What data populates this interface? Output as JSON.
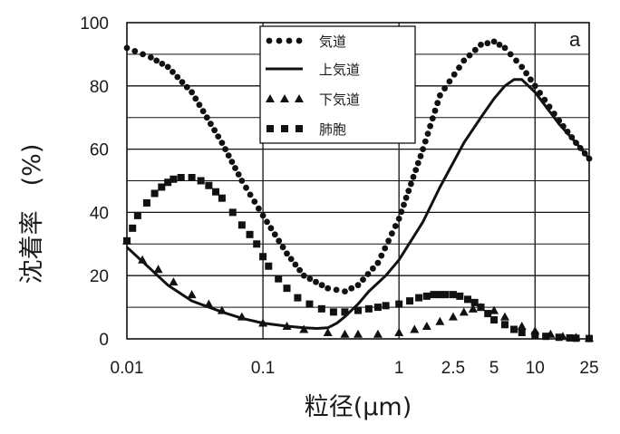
{
  "chart_data": {
    "type": "line",
    "panel_label": "a",
    "xlabel": "粒径(μm)",
    "ylabel": "沈着率　(%)",
    "x_scale": "log",
    "xlim": [
      0.01,
      25
    ],
    "ylim": [
      0,
      100
    ],
    "x_ticks": [
      {
        "value": 0.01,
        "label": "0.01"
      },
      {
        "value": 0.1,
        "label": "0.1"
      },
      {
        "value": 1,
        "label": "1"
      },
      {
        "value": 2.5,
        "label": "2.5"
      },
      {
        "value": 5,
        "label": "5"
      },
      {
        "value": 10,
        "label": "10"
      },
      {
        "value": 25,
        "label": "25"
      }
    ],
    "y_ticks": [
      {
        "value": 0,
        "label": "0"
      },
      {
        "value": 20,
        "label": "20"
      },
      {
        "value": 40,
        "label": "40"
      },
      {
        "value": 60,
        "label": "60"
      },
      {
        "value": 80,
        "label": "80"
      },
      {
        "value": 100,
        "label": "100"
      }
    ],
    "grid": true,
    "legend_position": "top-center",
    "series": [
      {
        "name": "気道",
        "marker": "dot",
        "color": "#111111",
        "x": [
          0.01,
          0.015,
          0.02,
          0.03,
          0.05,
          0.07,
          0.1,
          0.15,
          0.2,
          0.3,
          0.4,
          0.5,
          0.7,
          1,
          1.5,
          2,
          3,
          4,
          5,
          6,
          8,
          10,
          15,
          20,
          25
        ],
        "y": [
          92,
          89,
          86,
          78,
          62,
          50,
          39,
          27,
          20,
          16,
          15,
          17,
          24,
          38,
          60,
          77,
          88,
          93,
          94,
          92,
          86,
          80,
          69,
          62,
          57
        ]
      },
      {
        "name": "上気道",
        "marker": "line",
        "color": "#111111",
        "x": [
          0.01,
          0.015,
          0.02,
          0.03,
          0.05,
          0.07,
          0.1,
          0.15,
          0.2,
          0.25,
          0.3,
          0.35,
          0.4,
          0.5,
          0.6,
          0.8,
          1,
          1.5,
          2,
          3,
          4,
          5,
          6,
          7,
          8,
          10,
          15,
          20,
          25
        ],
        "y": [
          29,
          22,
          17,
          12,
          8.5,
          6.5,
          5,
          4,
          3.5,
          3.3,
          3.5,
          5,
          7,
          11,
          15,
          20,
          25,
          37,
          48,
          62,
          70,
          76,
          80,
          82,
          82,
          78,
          68,
          62,
          57
        ]
      },
      {
        "name": "下気道",
        "marker": "triangle",
        "color": "#111111",
        "x": [
          0.01,
          0.013,
          0.017,
          0.022,
          0.03,
          0.04,
          0.05,
          0.07,
          0.1,
          0.15,
          0.2,
          0.3,
          0.4,
          0.5,
          0.7,
          1,
          1.3,
          1.6,
          2,
          2.5,
          3,
          3.5,
          4,
          5,
          6,
          8,
          10,
          13,
          16,
          20,
          25
        ],
        "y": [
          31,
          25,
          22,
          18,
          14,
          11,
          9,
          7,
          5,
          4,
          3,
          2,
          1.5,
          1.5,
          1.5,
          2,
          3,
          4,
          5.5,
          7,
          8.5,
          9.5,
          10,
          9,
          7,
          4,
          2.5,
          1.5,
          0.8,
          0.5,
          0.3
        ]
      },
      {
        "name": "肺胞",
        "marker": "square",
        "color": "#111111",
        "x": [
          0.01,
          0.011,
          0.012,
          0.014,
          0.016,
          0.018,
          0.02,
          0.022,
          0.025,
          0.03,
          0.035,
          0.04,
          0.045,
          0.05,
          0.06,
          0.07,
          0.08,
          0.09,
          0.1,
          0.11,
          0.13,
          0.15,
          0.18,
          0.22,
          0.27,
          0.33,
          0.4,
          0.5,
          0.6,
          0.7,
          0.8,
          1,
          1.2,
          1.4,
          1.6,
          1.8,
          2,
          2.2,
          2.5,
          2.8,
          3.2,
          3.6,
          4,
          4.5,
          5,
          6,
          7,
          8,
          10,
          12,
          15,
          18,
          20,
          25
        ],
        "y": [
          31,
          35,
          39,
          43,
          46,
          48,
          49.5,
          50.5,
          51,
          51,
          50,
          48.5,
          46.5,
          44.5,
          40,
          36,
          33,
          30,
          26,
          23,
          19,
          16,
          13,
          11,
          9.5,
          8.5,
          8.5,
          9,
          9.5,
          10,
          10.5,
          11,
          12,
          13,
          13.5,
          14,
          14,
          14,
          14,
          13.5,
          12.5,
          11.5,
          10,
          8,
          6,
          4.5,
          3,
          2,
          1.2,
          0.8,
          0.5,
          0.3,
          0.2,
          0.1
        ]
      }
    ]
  }
}
